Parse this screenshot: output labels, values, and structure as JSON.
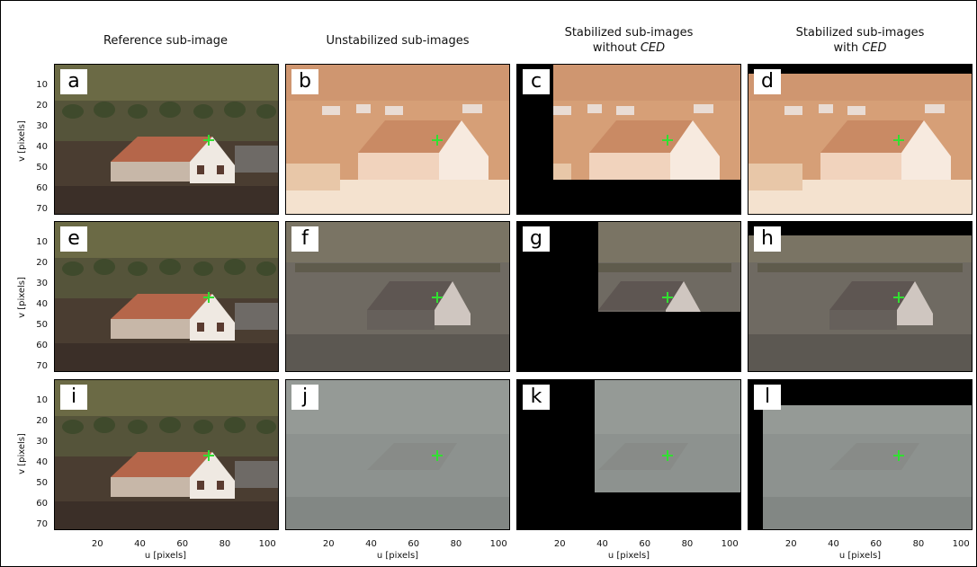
{
  "columns": [
    {
      "title_line1": "Reference sub-image",
      "title_line2": "",
      "title_em": ""
    },
    {
      "title_line1": "Unstabilized sub-images",
      "title_line2": "",
      "title_em": ""
    },
    {
      "title_line1": "Stabilized sub-images",
      "title_line2": "without ",
      "title_em": "CED"
    },
    {
      "title_line1": "Stabilized sub-images",
      "title_line2": "with ",
      "title_em": "CED"
    }
  ],
  "panels": [
    {
      "letter": "a",
      "scene": "house",
      "tone": "normal"
    },
    {
      "letter": "b",
      "scene": "bright",
      "tone": "bright"
    },
    {
      "letter": "c",
      "scene": "bright",
      "tone": "bright"
    },
    {
      "letter": "d",
      "scene": "bright",
      "tone": "bright"
    },
    {
      "letter": "e",
      "scene": "house",
      "tone": "normal"
    },
    {
      "letter": "f",
      "scene": "dark",
      "tone": "dark"
    },
    {
      "letter": "g",
      "scene": "dark",
      "tone": "dark"
    },
    {
      "letter": "h",
      "scene": "dark",
      "tone": "dark"
    },
    {
      "letter": "i",
      "scene": "house",
      "tone": "normal"
    },
    {
      "letter": "j",
      "scene": "fog",
      "tone": "fog"
    },
    {
      "letter": "k",
      "scene": "fog",
      "tone": "fog"
    },
    {
      "letter": "l",
      "scene": "fog",
      "tone": "fog"
    }
  ],
  "axes": {
    "y_label": "v [pixels]",
    "x_label": "u [pixels]",
    "y_ticks": [
      "10",
      "20",
      "30",
      "40",
      "50",
      "60",
      "70"
    ],
    "x_ticks": [
      "20",
      "40",
      "60",
      "80",
      "100"
    ]
  },
  "colors": {
    "marker": "#31e031",
    "mask": "#000000"
  }
}
